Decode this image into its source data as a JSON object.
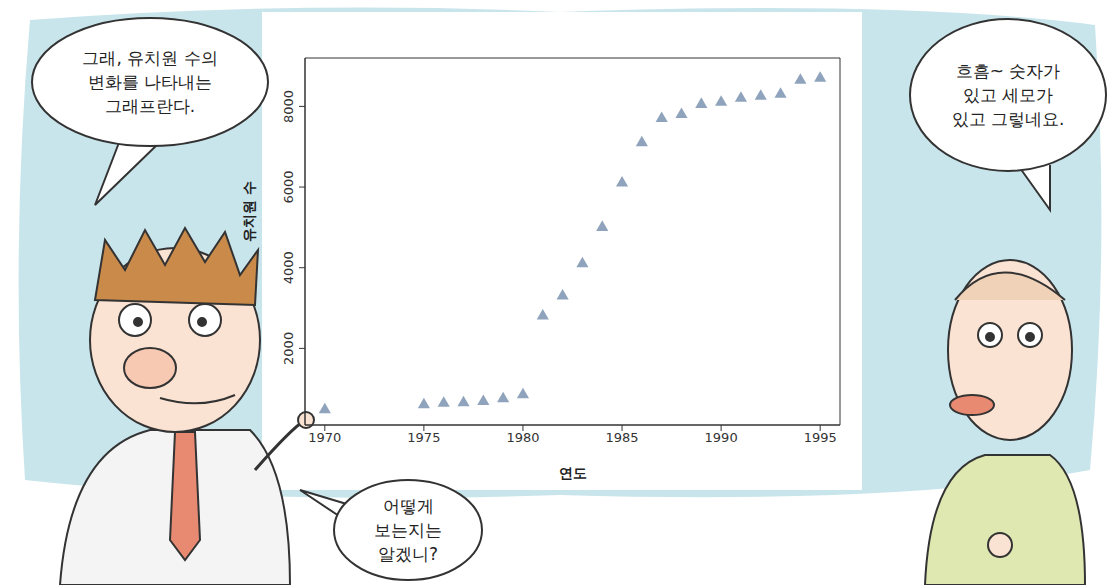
{
  "chart_data": {
    "type": "scatter",
    "x_label": "연도",
    "y_label": "유치원 수",
    "x": [
      1970,
      1975,
      1976,
      1977,
      1978,
      1979,
      1980,
      1981,
      1982,
      1983,
      1984,
      1985,
      1986,
      1987,
      1988,
      1989,
      1990,
      1991,
      1992,
      1993,
      1994,
      1995
    ],
    "values": [
      480,
      600,
      640,
      650,
      680,
      750,
      850,
      2800,
      3300,
      4100,
      5000,
      6100,
      7100,
      7700,
      7800,
      8050,
      8100,
      8200,
      8250,
      8300,
      8650,
      8700
    ],
    "color": "#8fa4bc",
    "marker": "triangle",
    "xlim": [
      1969,
      1996
    ],
    "ylim": [
      100,
      9200
    ],
    "xticks": [
      1970,
      1975,
      1980,
      1985,
      1990,
      1995
    ],
    "yticks": [
      2000,
      4000,
      6000,
      8000
    ]
  },
  "bubbles": [
    {
      "lines": [
        "그래, 유치원 수의",
        "변화를 나타내는",
        "그래프란다."
      ]
    },
    {
      "lines": [
        "어떻게",
        "보는지는",
        "알겠니?"
      ]
    },
    {
      "lines": [
        "흐흠~ 숫자가",
        "있고 세모가",
        "있고 그렇네요."
      ]
    }
  ]
}
